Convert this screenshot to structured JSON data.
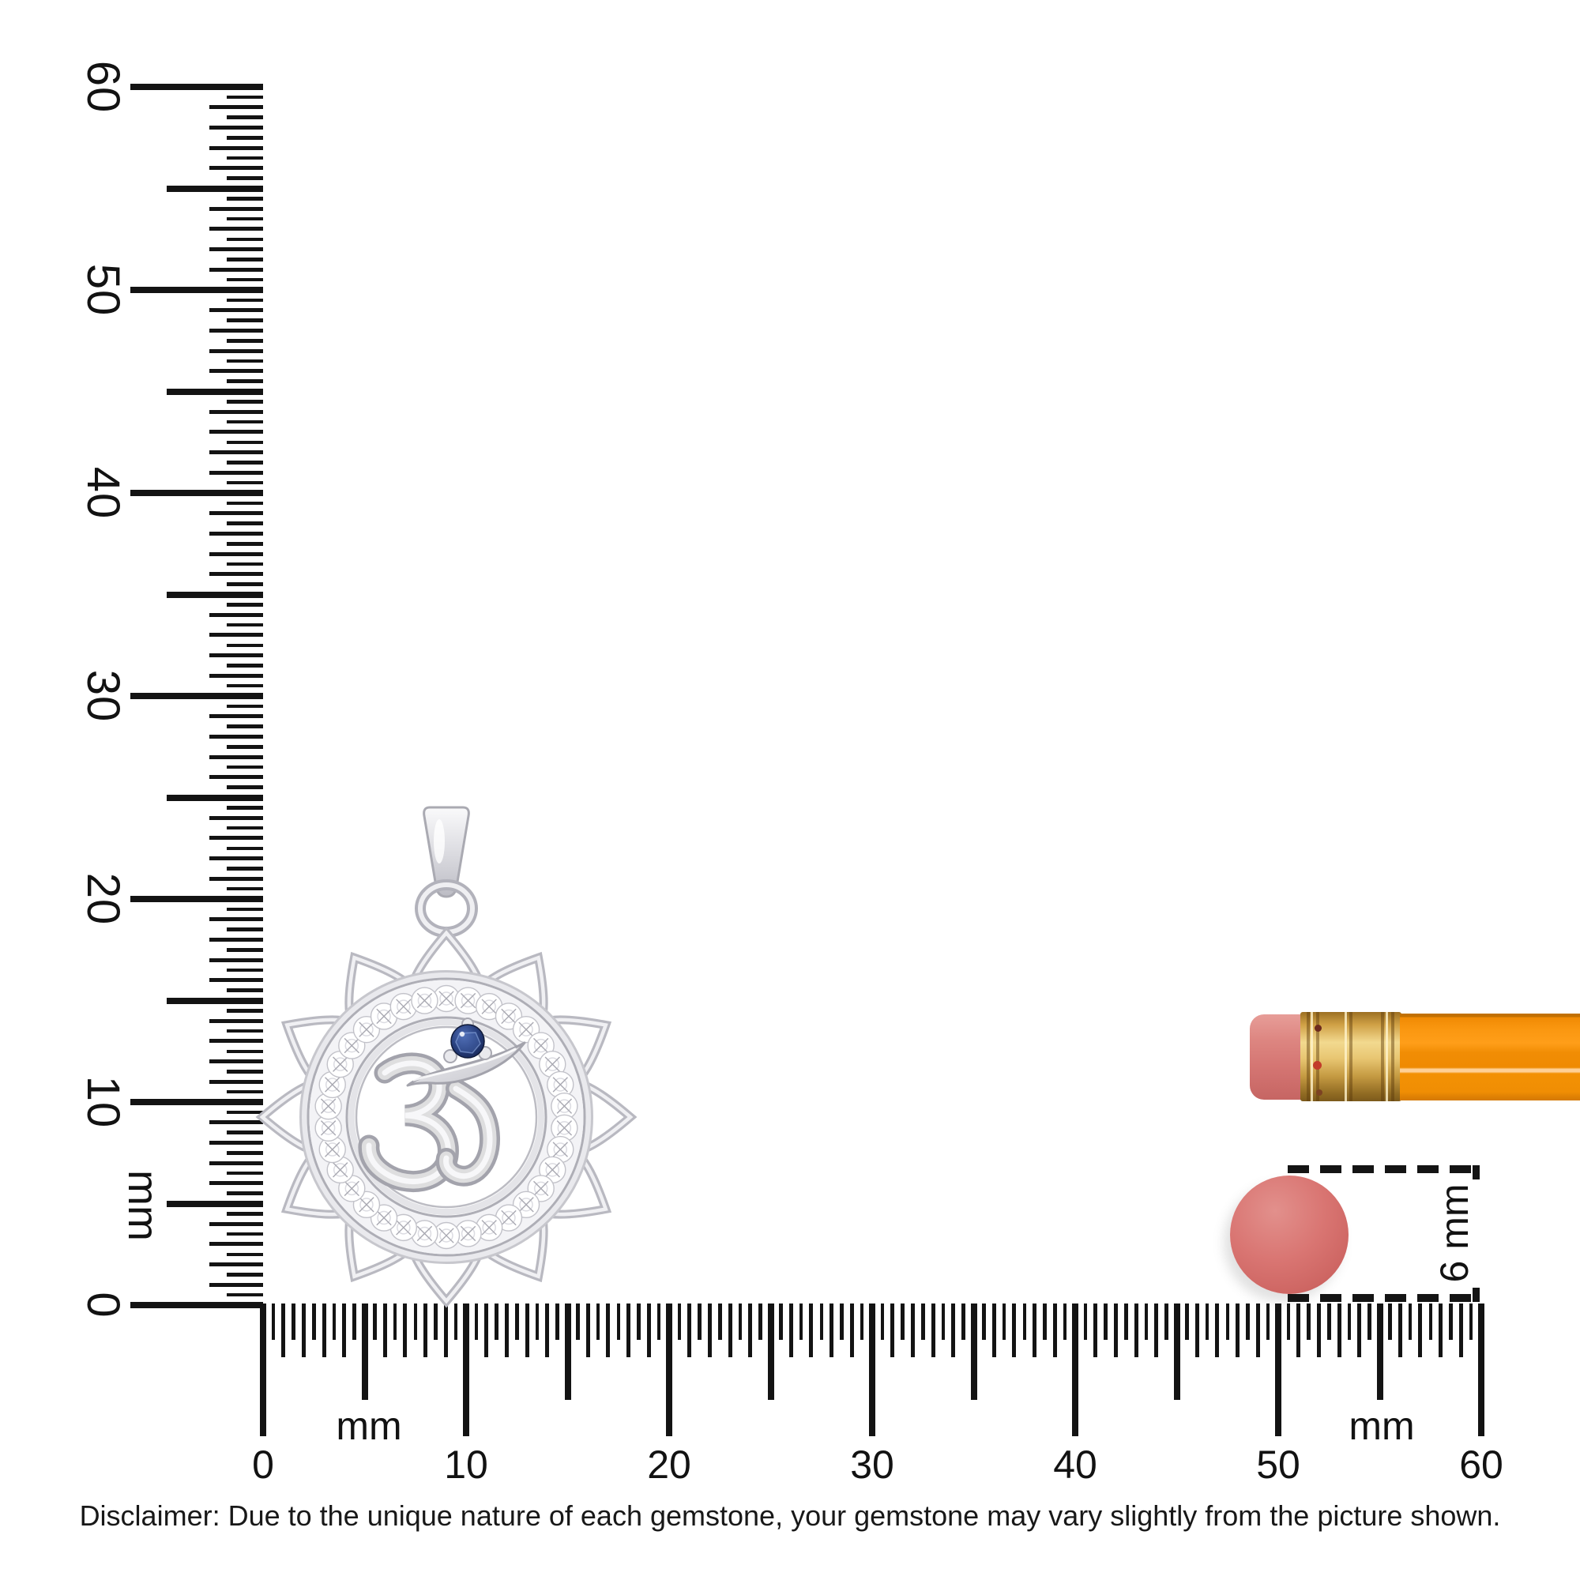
{
  "page": {
    "background_color": "#ffffff",
    "disclaimer": "Disclaimer: Due to the unique nature of each gemstone, your gemstone may vary slightly from the picture shown."
  },
  "rulers": {
    "vertical": {
      "unit_label": "mm",
      "tick_labels": [
        "0",
        "10",
        "20",
        "30",
        "40",
        "50",
        "60"
      ]
    },
    "horizontal": {
      "unit_label_left": "mm",
      "unit_label_right": "mm",
      "tick_labels": [
        "0",
        "10",
        "20",
        "30",
        "40",
        "50",
        "60"
      ]
    }
  },
  "measurement_callout": {
    "label": "6 mm"
  },
  "pendant": {
    "petal_count": 12,
    "pave_stone_count": 34,
    "metal_color": "#d8d8dd",
    "center_gem_color": "#22346c"
  },
  "pencil": {
    "eraser_color": "#d97b76",
    "ferrule_color": "#dcb05e",
    "body_color": "#f59004"
  },
  "size_disc": {
    "color": "#d96f6d"
  }
}
